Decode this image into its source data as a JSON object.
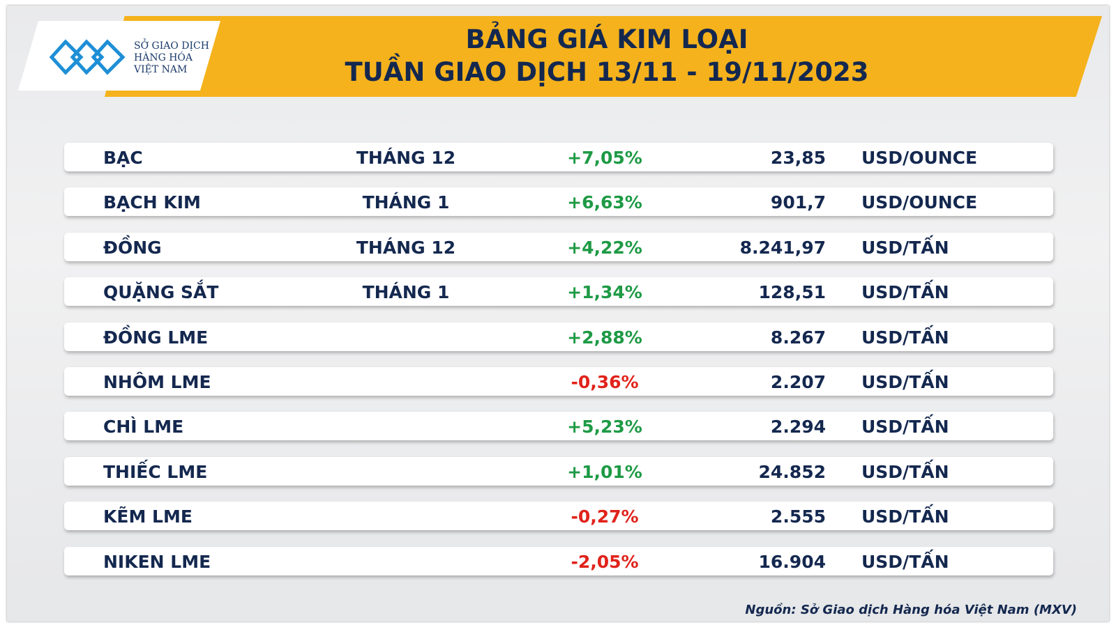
{
  "logo": {
    "lines": [
      "SỞ GIAO DỊCH",
      "HÀNG HÓA",
      "VIỆT NAM"
    ]
  },
  "header": {
    "title": "BẢNG GIÁ KIM LOẠI",
    "subtitle": "TUẦN GIAO DỊCH 13/11 - 19/11/2023"
  },
  "table": {
    "rows": [
      {
        "name": "BẠC",
        "month": "THÁNG 12",
        "change": "+7,05%",
        "price": "23,85",
        "unit": "USD/OUNCE"
      },
      {
        "name": "BẠCH KIM",
        "month": "THÁNG 1",
        "change": "+6,63%",
        "price": "901,7",
        "unit": "USD/OUNCE"
      },
      {
        "name": "ĐỒNG",
        "month": "THÁNG 12",
        "change": "+4,22%",
        "price": "8.241,97",
        "unit": "USD/TẤN"
      },
      {
        "name": "QUẶNG SẮT",
        "month": "THÁNG 1",
        "change": "+1,34%",
        "price": "128,51",
        "unit": "USD/TẤN"
      },
      {
        "name": "ĐỒNG LME",
        "change": "+2,88%",
        "price": "8.267",
        "unit": "USD/TẤN"
      },
      {
        "name": "NHÔM LME",
        "change": "-0,36%",
        "price": "2.207",
        "unit": "USD/TẤN"
      },
      {
        "name": "CHÌ LME",
        "change": "+5,23%",
        "price": "2.294",
        "unit": "USD/TẤN"
      },
      {
        "name": "THIẾC LME",
        "change": "+1,01%",
        "price": "24.852",
        "unit": "USD/TẤN"
      },
      {
        "name": "KẼM LME",
        "change": "-0,27%",
        "price": "2.555",
        "unit": "USD/TẤN"
      },
      {
        "name": "NIKEN LME",
        "change": "-2,05%",
        "price": "16.904",
        "unit": "USD/TẤN"
      }
    ]
  },
  "source": "Nguồn: Sở Giao dịch Hàng hóa Việt Nam (MXV)"
}
